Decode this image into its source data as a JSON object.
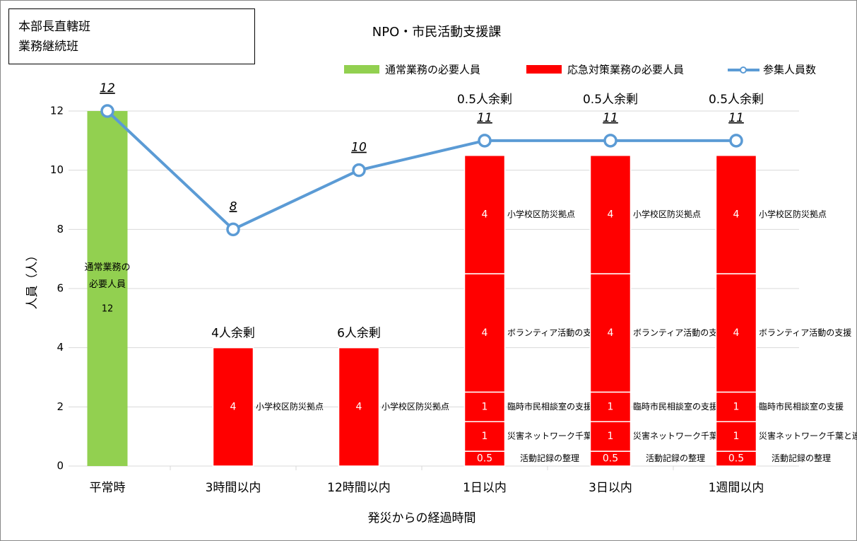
{
  "chart_data": {
    "type": "stacked-bar-line",
    "title": "NPO・市民活動支援課",
    "box_lines": [
      "本部長直轄班",
      "業務継続班"
    ],
    "x_label": "発災からの経過時間",
    "y_label": "人員（人）",
    "categories": [
      "平常時",
      "3時間以内",
      "12時間以内",
      "1日以内",
      "3日以内",
      "1週間以内"
    ],
    "ylim": [
      0,
      12
    ],
    "yticks": [
      0,
      2,
      4,
      6,
      8,
      10,
      12
    ],
    "grid": true,
    "normal": {
      "name": "通常業務の必要人員",
      "color": "#92d050",
      "values": [
        12,
        null,
        null,
        null,
        null,
        null
      ]
    },
    "stack": {
      "name": "応急対策業務の必要人員",
      "color": "#ff0000",
      "segments": [
        {
          "name": "活動記録の整理",
          "values": [
            null,
            null,
            null,
            0.5,
            0.5,
            0.5
          ]
        },
        {
          "name": "災害ネットワーク千葉と連携",
          "values": [
            null,
            null,
            null,
            1,
            1,
            1
          ]
        },
        {
          "name": "臨時市民相談室の支援",
          "values": [
            null,
            null,
            null,
            1,
            1,
            1
          ]
        },
        {
          "name": "ボランティア活動の支援",
          "values": [
            null,
            null,
            null,
            4,
            4,
            4
          ]
        },
        {
          "name": "小学校区防災拠点",
          "values": [
            null,
            4,
            4,
            4,
            4,
            4
          ]
        }
      ]
    },
    "line": {
      "name": "参集人員数",
      "color": "#5b9bd5",
      "values": [
        12,
        8,
        10,
        11,
        11,
        11
      ]
    },
    "surplus_labels": [
      null,
      "4人余剰",
      "6人余剰",
      "0.5人余剰",
      "0.5人余剰",
      "0.5人余剰"
    ]
  }
}
